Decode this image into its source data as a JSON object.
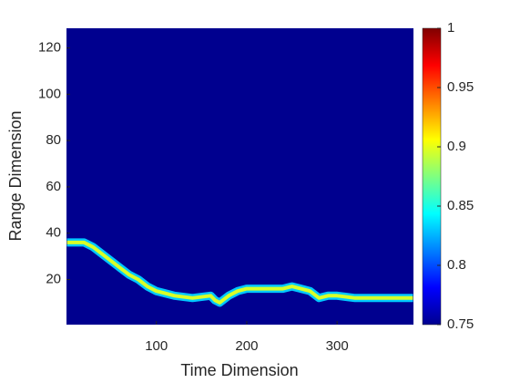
{
  "chart_data": {
    "type": "heatmap",
    "xlabel": "Time Dimension",
    "ylabel": "Range Dimension",
    "xlim": [
      0.5,
      384.5
    ],
    "ylim": [
      0.5,
      128.5
    ],
    "xticks": [
      100,
      200,
      300
    ],
    "yticks": [
      20,
      40,
      60,
      80,
      100,
      120
    ],
    "colormap": "jet",
    "clim": [
      0.75,
      1
    ],
    "cticks": [
      0.75,
      0.8,
      0.85,
      0.9,
      0.95,
      1
    ],
    "x": [
      1,
      20,
      30,
      40,
      50,
      60,
      70,
      80,
      90,
      100,
      110,
      120,
      140,
      160,
      165,
      170,
      180,
      190,
      200,
      220,
      240,
      250,
      260,
      270,
      280,
      290,
      300,
      320,
      340,
      360,
      384
    ],
    "values": [
      36,
      36,
      34,
      31,
      28,
      25,
      22,
      20,
      17,
      15,
      14,
      13,
      12,
      13,
      11,
      10,
      13,
      15,
      16,
      16,
      16,
      17,
      16,
      15,
      12,
      13,
      13,
      12,
      12,
      12,
      12
    ],
    "color": "#d8ff28",
    "edge_color": "#00c8ff"
  }
}
